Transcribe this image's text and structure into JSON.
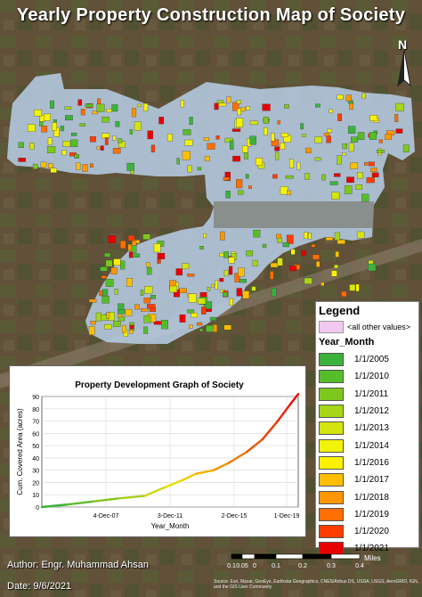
{
  "title": "Yearly Property Construction Map of Society",
  "north_label": "N",
  "legend": {
    "title": "Legend",
    "other_label": "<all other values>",
    "field_label": "Year_Month",
    "items": [
      {
        "label": "1/1/2005",
        "color": "#3cb23c"
      },
      {
        "label": "1/1/2010",
        "color": "#56bd2a"
      },
      {
        "label": "1/1/2011",
        "color": "#7ec81e"
      },
      {
        "label": "1/1/2012",
        "color": "#a6d616"
      },
      {
        "label": "1/1/2013",
        "color": "#d4e40e"
      },
      {
        "label": "1/1/2014",
        "color": "#f2f20a"
      },
      {
        "label": "1/1/2016",
        "color": "#fff000"
      },
      {
        "label": "1/1/2017",
        "color": "#ffbe00"
      },
      {
        "label": "1/1/2018",
        "color": "#ff9600"
      },
      {
        "label": "1/1/2019",
        "color": "#ff6e00"
      },
      {
        "label": "1/1/2020",
        "color": "#ff3c00"
      },
      {
        "label": "1/1/2021",
        "color": "#e80000"
      }
    ]
  },
  "chart_data": {
    "type": "line",
    "title": "Property Development Graph of Society",
    "xlabel": "Year_Month",
    "ylabel": "Cum. Covered Area (acres)",
    "x_ticks": [
      "4-Dec-07",
      "3-Dec-11",
      "2-Dec-15",
      "1-Dec-19"
    ],
    "x_tick_positions": [
      0.25,
      0.5,
      0.75,
      0.955
    ],
    "ylim": [
      0,
      90
    ],
    "y_ticks": [
      0,
      10,
      20,
      30,
      40,
      50,
      60,
      70,
      80,
      90
    ],
    "series": [
      {
        "x": [
          0.0,
          0.1,
          0.2,
          0.3,
          0.4,
          0.48,
          0.55,
          0.6,
          0.67,
          0.73,
          0.8,
          0.86,
          0.92,
          0.97,
          1.0
        ],
        "values": [
          0,
          2,
          4.5,
          7,
          9,
          16,
          22,
          27,
          30,
          36,
          45,
          55,
          70,
          84,
          92
        ]
      }
    ],
    "line_start_color": "#3cb23c",
    "line_end_color": "#e80000"
  },
  "author": "Author: Engr. Muhammad Ahsan",
  "date": "Date: 9/6/2021",
  "scale": {
    "unit": "Miles",
    "ticks": [
      "0.1",
      "0.05",
      "0",
      "0.1",
      "0.2",
      "0.3",
      "0.4"
    ]
  },
  "credits": "Source: Esri, Maxar, GeoEye, Earthstar Geographics, CNES/Airbus DS, USDA, USGS, AeroGRID, IGN, and the GIS User Community"
}
